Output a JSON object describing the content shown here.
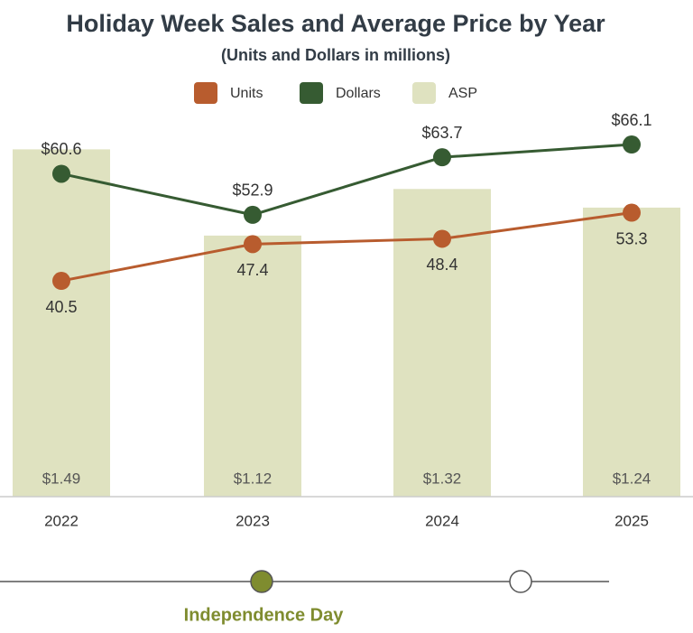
{
  "chart_data": {
    "type": "combo",
    "title": "Holiday Week Sales and Average Price by Year",
    "subtitle": "(Units and Dollars in millions)",
    "categories": [
      "2022",
      "2023",
      "2024",
      "2025"
    ],
    "series": [
      {
        "name": "Units",
        "type": "line",
        "color": "#b85c2e",
        "values": [
          40.5,
          47.4,
          48.4,
          53.3
        ]
      },
      {
        "name": "Dollars",
        "type": "line",
        "color": "#365b32",
        "values": [
          60.6,
          52.9,
          63.7,
          66.1
        ],
        "value_labels": [
          "$60.6",
          "$52.9",
          "$63.7",
          "$66.1"
        ]
      },
      {
        "name": "ASP",
        "type": "bar",
        "axis": "y2",
        "color": "#dfe2c0",
        "values": [
          1.49,
          1.12,
          1.32,
          1.24
        ],
        "value_labels": [
          "$1.49",
          "$1.12",
          "$1.32",
          "$1.24"
        ]
      }
    ],
    "ylim": [
      0,
      70
    ],
    "y2lim": [
      0,
      1.6
    ]
  },
  "timeline": {
    "label": "Independence Day"
  }
}
